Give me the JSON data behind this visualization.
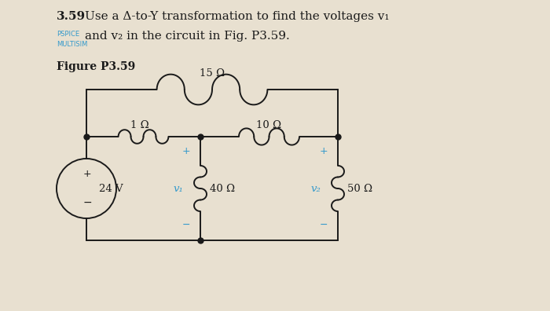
{
  "page_color": "#e8e0d0",
  "title_line1": "3.59  Use a Δ-to-Y transformation to find the voltages v₁",
  "title_line2": "and v₂ in the circuit in Fig. P3.59.",
  "pspice_text": "PSPICE",
  "multisim_text": "MULTISIM",
  "figure_label": "Figure P3.59",
  "r_top": "15 Ω",
  "r_left": "1 Ω",
  "r_right": "10 Ω",
  "r_mid": "40 Ω",
  "r_far": "50 Ω",
  "v_source": "24 V",
  "v1_label": "v₁",
  "v2_label": "v₂",
  "wire_color": "#1a1a1a",
  "dot_color": "#1a1a1a",
  "text_color": "#1a1a1a",
  "pspice_color": "#3399cc",
  "label_color": "#3399cc",
  "plus_minus_color": "#3399cc",
  "source_pm_color": "#1a1a1a"
}
